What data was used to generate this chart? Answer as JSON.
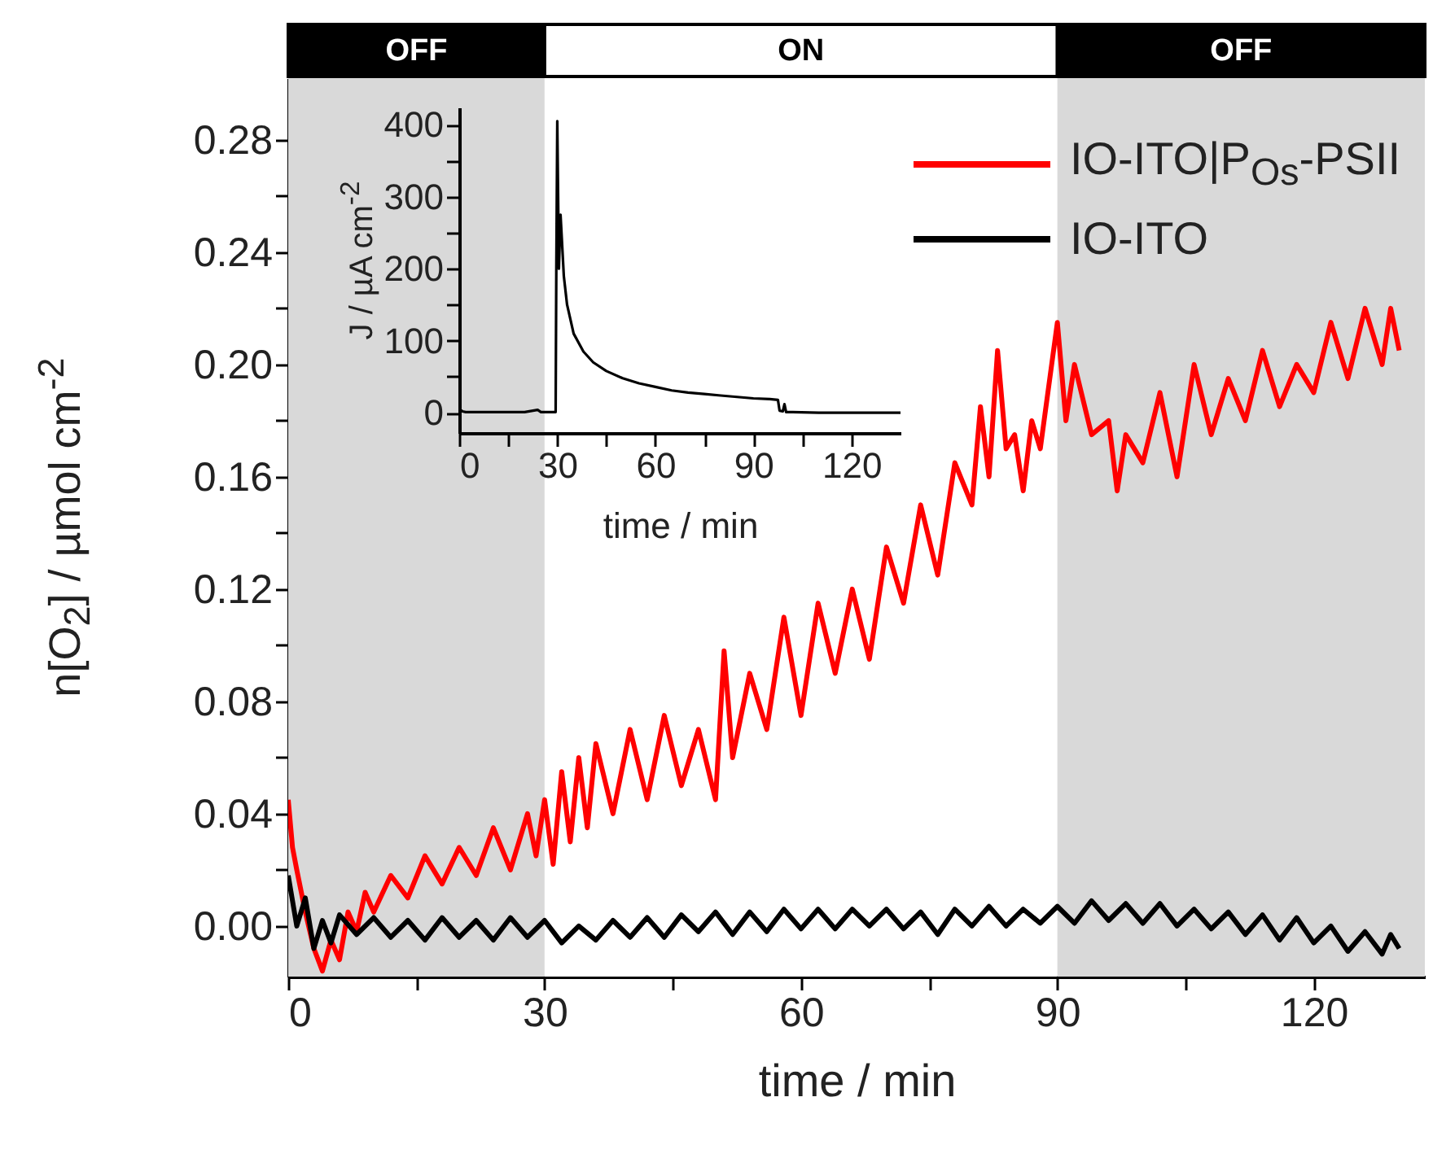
{
  "chart_data": [
    {
      "type": "line",
      "xlabel": "time / min",
      "ylabel": "n[O$_{2}$] / µmol cm$^{-2}$",
      "xlim": [
        0,
        133
      ],
      "ylim": [
        -0.018,
        0.302
      ],
      "xticks": [
        0,
        {
          "value": 15,
          "label": null
        },
        30,
        {
          "value": 45,
          "label": null
        },
        60,
        {
          "value": 75,
          "label": null
        },
        90,
        {
          "value": 105,
          "label": null
        },
        120
      ],
      "yticks": [
        {
          "value": 0,
          "label": "0.00"
        },
        {
          "value": 0.02,
          "label": null
        },
        {
          "value": 0.04,
          "label": "0.04"
        },
        {
          "value": 0.06,
          "label": null
        },
        {
          "value": 0.08,
          "label": "0.08"
        },
        {
          "value": 0.1,
          "label": null
        },
        {
          "value": 0.12,
          "label": "0.12"
        },
        {
          "value": 0.14,
          "label": null
        },
        {
          "value": 0.16,
          "label": "0.16"
        },
        {
          "value": 0.18,
          "label": null
        },
        {
          "value": 0.2,
          "label": "0.20"
        },
        {
          "value": 0.22,
          "label": null
        },
        {
          "value": 0.24,
          "label": "0.24"
        },
        {
          "value": 0.26,
          "label": null
        },
        {
          "value": 0.28,
          "label": "0.28"
        }
      ],
      "legend": "top right",
      "bands": [
        {
          "axis": "x",
          "from": 0,
          "to": 30,
          "label": "OFF",
          "color": "#d9d9d9"
        },
        {
          "axis": "x",
          "from": 30,
          "to": 90,
          "label": "ON",
          "color": "#ffffff"
        },
        {
          "axis": "x",
          "from": 90,
          "to": 133,
          "label": "OFF",
          "color": "#d9d9d9"
        }
      ],
      "series": [
        {
          "name": "IO-ITO|P$_{Os}$-PSII",
          "color": "#ff0000",
          "x": [
            0,
            0.5,
            1,
            2,
            3,
            4,
            5,
            6,
            7,
            8,
            9,
            10,
            12,
            14,
            16,
            18,
            20,
            22,
            24,
            26,
            28,
            29,
            30,
            31,
            32,
            33,
            34,
            35,
            36,
            38,
            40,
            42,
            44,
            46,
            48,
            50,
            51,
            52,
            54,
            56,
            58,
            60,
            62,
            64,
            66,
            68,
            70,
            72,
            74,
            76,
            78,
            80,
            81,
            82,
            83,
            84,
            85,
            86,
            87,
            88,
            90,
            91,
            92,
            94,
            96,
            97,
            98,
            100,
            102,
            104,
            106,
            108,
            110,
            112,
            114,
            116,
            118,
            120,
            122,
            124,
            126,
            128,
            129,
            130
          ],
          "values": [
            0.045,
            0.028,
            0.02,
            0.005,
            -0.008,
            -0.016,
            -0.005,
            -0.012,
            0.005,
            -0.002,
            0.012,
            0.005,
            0.018,
            0.01,
            0.025,
            0.015,
            0.028,
            0.018,
            0.035,
            0.02,
            0.04,
            0.025,
            0.045,
            0.022,
            0.055,
            0.03,
            0.06,
            0.035,
            0.065,
            0.04,
            0.07,
            0.045,
            0.075,
            0.05,
            0.07,
            0.045,
            0.098,
            0.06,
            0.09,
            0.07,
            0.11,
            0.075,
            0.115,
            0.09,
            0.12,
            0.095,
            0.135,
            0.115,
            0.15,
            0.125,
            0.165,
            0.15,
            0.185,
            0.16,
            0.205,
            0.17,
            0.175,
            0.155,
            0.18,
            0.17,
            0.215,
            0.18,
            0.2,
            0.175,
            0.18,
            0.155,
            0.175,
            0.165,
            0.19,
            0.16,
            0.2,
            0.175,
            0.195,
            0.18,
            0.205,
            0.185,
            0.2,
            0.19,
            0.215,
            0.195,
            0.22,
            0.2,
            0.22,
            0.205
          ]
        },
        {
          "name": "IO-ITO",
          "color": "#000000",
          "x": [
            0,
            1,
            2,
            3,
            4,
            5,
            6,
            8,
            10,
            12,
            14,
            16,
            18,
            20,
            22,
            24,
            26,
            28,
            30,
            32,
            34,
            36,
            38,
            40,
            42,
            44,
            46,
            48,
            50,
            52,
            54,
            56,
            58,
            60,
            62,
            64,
            66,
            68,
            70,
            72,
            74,
            76,
            78,
            80,
            82,
            84,
            86,
            88,
            90,
            92,
            94,
            96,
            98,
            100,
            102,
            104,
            106,
            108,
            110,
            112,
            114,
            116,
            118,
            120,
            122,
            124,
            126,
            128,
            129,
            130
          ],
          "values": [
            0.018,
            0,
            0.01,
            -0.008,
            0.002,
            -0.006,
            0.004,
            -0.003,
            0.003,
            -0.004,
            0.002,
            -0.005,
            0.003,
            -0.004,
            0.002,
            -0.005,
            0.003,
            -0.004,
            0.002,
            -0.006,
            0,
            -0.005,
            0.002,
            -0.004,
            0.003,
            -0.004,
            0.004,
            -0.002,
            0.005,
            -0.003,
            0.005,
            -0.002,
            0.006,
            -0.001,
            0.006,
            -0.001,
            0.006,
            0,
            0.006,
            -0.001,
            0.005,
            -0.003,
            0.006,
            0,
            0.007,
            0,
            0.006,
            0.001,
            0.007,
            0.001,
            0.009,
            0.002,
            0.008,
            0.001,
            0.008,
            0,
            0.006,
            -0.001,
            0.005,
            -0.003,
            0.004,
            -0.005,
            0.003,
            -0.006,
            0,
            -0.009,
            -0.002,
            -0.01,
            -0.003,
            -0.008
          ]
        }
      ]
    },
    {
      "type": "line",
      "xlabel": "time / min",
      "ylabel": "J / µA cm$^{-2}$",
      "xlim": [
        0,
        135
      ],
      "ylim": [
        -28,
        424
      ],
      "xticks": [
        0,
        {
          "value": 15,
          "label": null
        },
        30,
        {
          "value": 45,
          "label": null
        },
        60,
        {
          "value": 75,
          "label": null
        },
        90,
        {
          "value": 105,
          "label": null
        },
        120
      ],
      "yticks": [
        0,
        {
          "value": 50,
          "label": null
        },
        100,
        {
          "value": 150,
          "label": null
        },
        200,
        {
          "value": 250,
          "label": null
        },
        300,
        {
          "value": 350,
          "label": null
        },
        400
      ],
      "series": [
        {
          "color": "#000000",
          "x": [
            0,
            1,
            2,
            5,
            10,
            15,
            20,
            24,
            25,
            29.5,
            29.7,
            30,
            30.5,
            31,
            32,
            33,
            35,
            38,
            41,
            45,
            50,
            55,
            60,
            65,
            70,
            75,
            80,
            85,
            90,
            95,
            97.5,
            98,
            99,
            99.5,
            100,
            102,
            110,
            120,
            135
          ],
          "values": [
            5,
            2,
            1,
            1,
            1,
            1,
            1,
            4,
            1,
            1,
            195,
            405,
            200,
            275,
            190,
            150,
            110,
            85,
            70,
            58,
            48,
            41,
            36,
            31,
            28,
            26,
            24,
            22,
            20,
            19,
            18,
            3,
            2,
            12,
            1,
            1,
            0,
            0,
            0
          ]
        }
      ]
    }
  ]
}
